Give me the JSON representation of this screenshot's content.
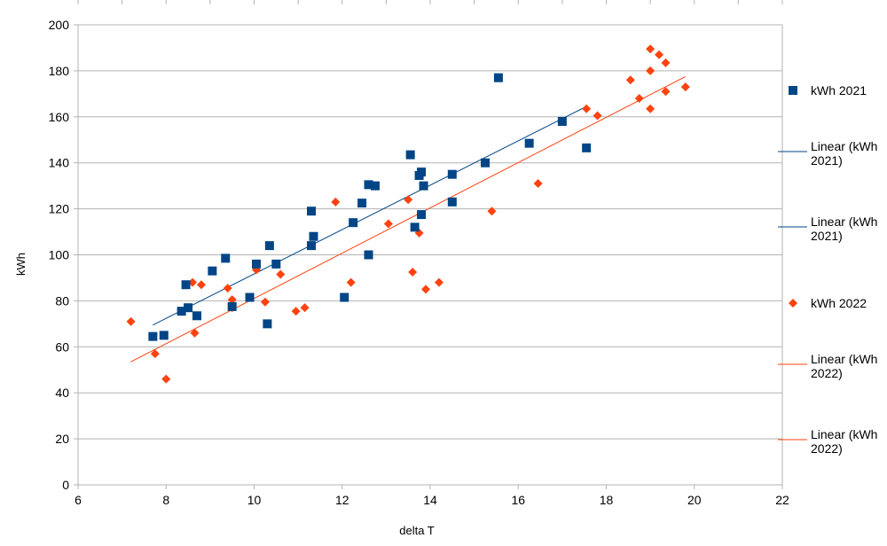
{
  "chart_data": {
    "type": "scatter",
    "title": "",
    "xlabel": "delta T",
    "ylabel": "kWh",
    "xlim": [
      6,
      22
    ],
    "ylim": [
      0,
      200
    ],
    "x_ticks": [
      "6",
      "8",
      "10",
      "12",
      "14",
      "16",
      "18",
      "20",
      "22"
    ],
    "y_ticks": [
      "0",
      "20",
      "40",
      "60",
      "80",
      "100",
      "120",
      "140",
      "160",
      "180",
      "200"
    ],
    "grid": "horizontal",
    "legend_position": "right",
    "series": [
      {
        "name": "kWh 2021",
        "marker": "square",
        "color": "#004586",
        "points": [
          [
            7.7,
            64.5
          ],
          [
            7.95,
            65
          ],
          [
            8.35,
            75.5
          ],
          [
            8.45,
            87
          ],
          [
            8.5,
            77
          ],
          [
            8.7,
            73.5
          ],
          [
            9.05,
            93
          ],
          [
            9.35,
            98.5
          ],
          [
            9.5,
            77.5
          ],
          [
            9.9,
            81.5
          ],
          [
            10.05,
            96
          ],
          [
            10.3,
            70
          ],
          [
            10.35,
            104
          ],
          [
            10.5,
            96
          ],
          [
            11.3,
            119
          ],
          [
            11.3,
            104
          ],
          [
            11.35,
            108
          ],
          [
            12.05,
            81.5
          ],
          [
            12.25,
            114
          ],
          [
            12.45,
            122.5
          ],
          [
            12.6,
            100
          ],
          [
            12.6,
            130.5
          ],
          [
            12.75,
            130
          ],
          [
            13.55,
            143.5
          ],
          [
            13.65,
            112
          ],
          [
            13.75,
            134.5
          ],
          [
            13.8,
            136
          ],
          [
            13.8,
            117.5
          ],
          [
            13.85,
            130
          ],
          [
            14.5,
            135
          ],
          [
            14.5,
            123
          ],
          [
            15.25,
            140
          ],
          [
            15.55,
            177
          ],
          [
            16.25,
            148.5
          ],
          [
            17.0,
            158
          ],
          [
            17.55,
            146.5
          ]
        ]
      },
      {
        "name": "kWh 2022",
        "marker": "diamond",
        "color": "#ff420e",
        "points": [
          [
            7.2,
            71
          ],
          [
            7.75,
            57
          ],
          [
            8.0,
            46
          ],
          [
            8.6,
            88
          ],
          [
            8.65,
            66
          ],
          [
            8.8,
            87
          ],
          [
            9.4,
            85.5
          ],
          [
            9.5,
            80.5
          ],
          [
            9.5,
            77
          ],
          [
            10.05,
            93.5
          ],
          [
            10.25,
            79.5
          ],
          [
            10.6,
            91.5
          ],
          [
            10.95,
            75.5
          ],
          [
            11.15,
            77
          ],
          [
            11.85,
            123
          ],
          [
            12.2,
            88
          ],
          [
            13.05,
            113.5
          ],
          [
            13.5,
            124
          ],
          [
            13.6,
            92.5
          ],
          [
            13.75,
            109.5
          ],
          [
            13.9,
            85
          ],
          [
            14.2,
            88
          ],
          [
            15.4,
            119
          ],
          [
            16.45,
            131
          ],
          [
            17.55,
            163.5
          ],
          [
            17.8,
            160.5
          ],
          [
            18.55,
            176
          ],
          [
            18.75,
            168
          ],
          [
            19.0,
            189.5
          ],
          [
            19.0,
            180
          ],
          [
            19.0,
            163.5
          ],
          [
            19.2,
            187
          ],
          [
            19.35,
            183.5
          ],
          [
            19.35,
            171
          ],
          [
            19.8,
            173
          ]
        ]
      }
    ],
    "trendlines": [
      {
        "name": "Linear (kWh 2021)",
        "color": "#004586",
        "x": [
          7.7,
          17.55
        ],
        "y": [
          69.5,
          164.5
        ]
      },
      {
        "name": "Linear (kWh 2022)",
        "color": "#ff420e",
        "x": [
          7.2,
          19.8
        ],
        "y": [
          53.5,
          177.5
        ]
      }
    ],
    "legend": [
      {
        "label": "kWh 2021",
        "symbol": "square",
        "color": "#004586"
      },
      {
        "label": "Linear (kWh 2021)",
        "symbol": "line",
        "color": "#004586"
      },
      {
        "label": "Linear (kWh 2021)",
        "symbol": "line",
        "color": "#004586"
      },
      {
        "label": "kWh 2022",
        "symbol": "diamond",
        "color": "#ff420e"
      },
      {
        "label": "Linear (kWh 2022)",
        "symbol": "line",
        "color": "#ff420e"
      },
      {
        "label": "Linear (kWh 2022)",
        "symbol": "line",
        "color": "#ff420e"
      }
    ]
  }
}
